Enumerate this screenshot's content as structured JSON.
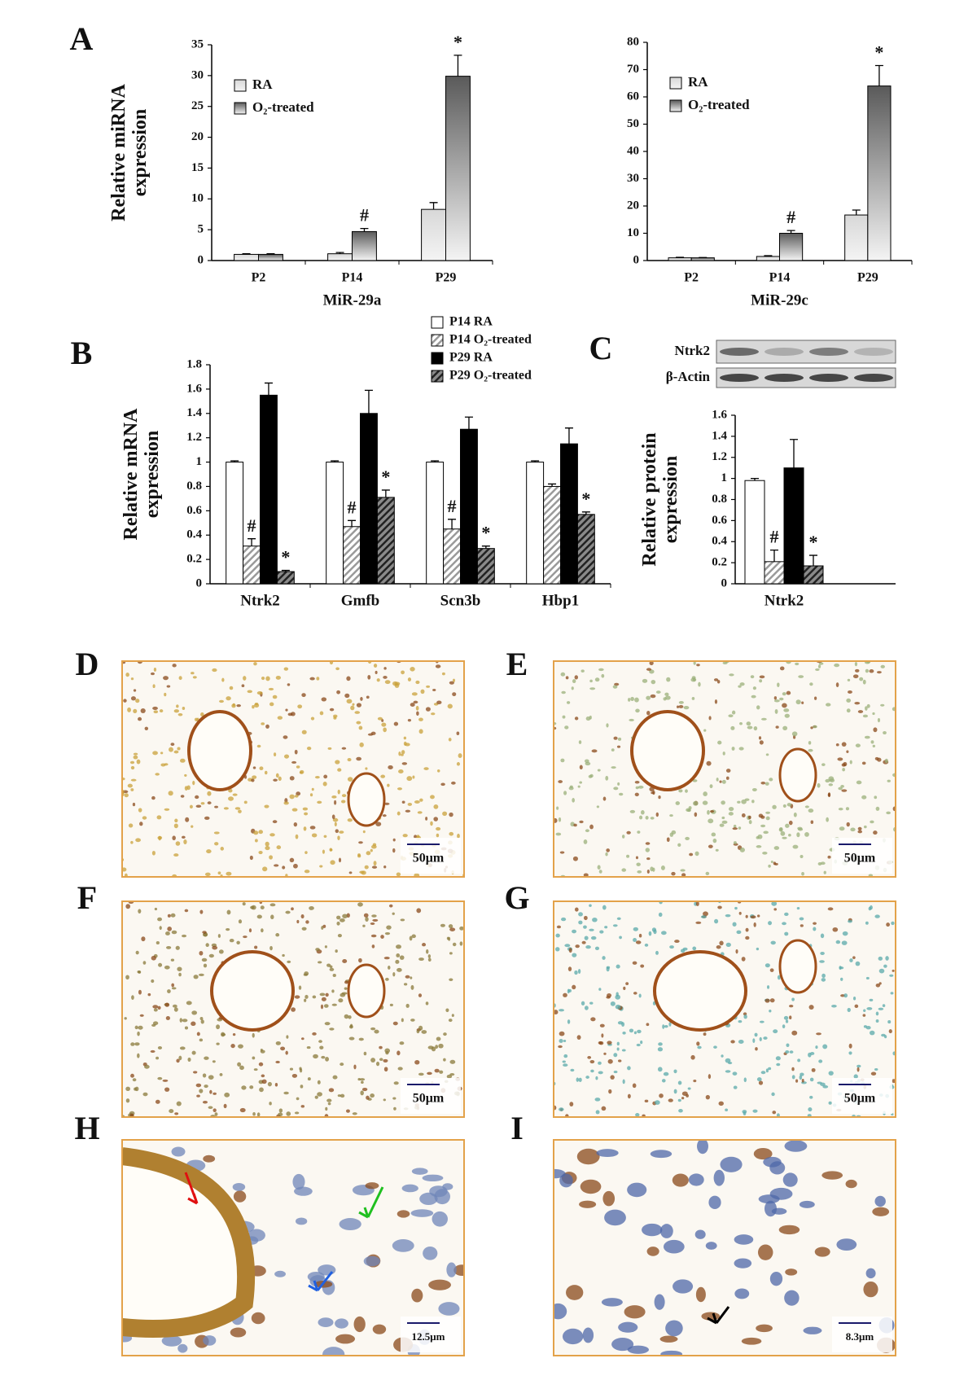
{
  "chart_data": [
    {
      "type": "bar",
      "panel": "A",
      "xlabel": "MiR-29a",
      "ylabel": "Relative miRNA expression",
      "categories": [
        "P2",
        "P14",
        "P29"
      ],
      "ylim": [
        0,
        35
      ],
      "yticks": [
        0,
        5,
        10,
        15,
        20,
        25,
        30,
        35
      ],
      "legend": "upper left",
      "series": [
        {
          "name": "RA",
          "color": "#d8d8d8",
          "style": "gradient",
          "values": [
            1,
            1.1,
            8.3
          ],
          "errors": [
            0.1,
            0.2,
            1.1
          ]
        },
        {
          "name": "O₂-treated",
          "color": "#5a5a5a",
          "style": "gradient",
          "values": [
            1,
            4.7,
            29.9
          ],
          "errors": [
            0.1,
            0.5,
            3.4
          ],
          "annotations": [
            null,
            "#",
            "*"
          ]
        }
      ]
    },
    {
      "type": "bar",
      "xlabel": "MiR-29c",
      "categories": [
        "P2",
        "P14",
        "P29"
      ],
      "ylim": [
        0,
        80
      ],
      "yticks": [
        0,
        10,
        20,
        30,
        40,
        50,
        60,
        70,
        80
      ],
      "legend": "upper left",
      "series": [
        {
          "name": "RA",
          "color": "#d8d8d8",
          "style": "gradient",
          "values": [
            1,
            1.5,
            16.7
          ],
          "errors": [
            0.2,
            0.3,
            1.8
          ]
        },
        {
          "name": "O₂-treated",
          "color": "#5a5a5a",
          "style": "gradient",
          "values": [
            1,
            10,
            64
          ],
          "errors": [
            0.1,
            1,
            7.5
          ],
          "annotations": [
            null,
            "#",
            "*"
          ]
        }
      ]
    },
    {
      "type": "bar",
      "panel": "B",
      "ylabel": "Relative mRNA expression",
      "categories": [
        "Ntrk2",
        "Gmfb",
        "Scn3b",
        "Hbp1"
      ],
      "ylim": [
        0,
        1.8
      ],
      "yticks": [
        0,
        0.2,
        0.4,
        0.6,
        0.8,
        1,
        1.2,
        1.4,
        1.6,
        1.8
      ],
      "legend": "upper right",
      "series": [
        {
          "name": "P14 RA",
          "color": "#ffffff",
          "style": "solid",
          "values": [
            1,
            1,
            1,
            1
          ],
          "errors": [
            0.01,
            0.01,
            0.01,
            0.01
          ]
        },
        {
          "name": "P14 O₂-treated",
          "color": "#9a9a9a",
          "style": "hatch",
          "values": [
            0.31,
            0.47,
            0.45,
            0.8
          ],
          "errors": [
            0.06,
            0.05,
            0.08,
            0.02
          ],
          "annotations": [
            "#",
            "#",
            "#",
            null
          ]
        },
        {
          "name": "P29 RA",
          "color": "#000000",
          "style": "solid",
          "values": [
            1.55,
            1.4,
            1.27,
            1.15
          ],
          "errors": [
            0.1,
            0.19,
            0.1,
            0.13
          ]
        },
        {
          "name": "P29 O₂-treated",
          "color": "#222222",
          "style": "hatch",
          "values": [
            0.1,
            0.71,
            0.29,
            0.57
          ],
          "errors": [
            0.01,
            0.06,
            0.02,
            0.02
          ],
          "annotations": [
            "*",
            "*",
            "*",
            "*"
          ]
        }
      ]
    },
    {
      "type": "bar",
      "panel": "C",
      "ylabel": "Relative protein expression",
      "categories": [
        "Ntrk2"
      ],
      "ylim": [
        0,
        1.6
      ],
      "yticks": [
        0,
        0.2,
        0.4,
        0.6,
        0.8,
        1,
        1.2,
        1.4,
        1.6
      ],
      "blot_labels": [
        "Ntrk2",
        "β-Actin"
      ],
      "series": [
        {
          "color": "#ffffff",
          "style": "solid",
          "values": [
            0.98
          ],
          "errors": [
            0.02
          ]
        },
        {
          "color": "#9a9a9a",
          "style": "hatch",
          "values": [
            0.21
          ],
          "errors": [
            0.11
          ],
          "annotations": [
            "#"
          ]
        },
        {
          "color": "#000000",
          "style": "solid",
          "values": [
            1.1
          ],
          "errors": [
            0.27
          ]
        },
        {
          "color": "#222222",
          "style": "hatch",
          "values": [
            0.17
          ],
          "errors": [
            0.1
          ],
          "annotations": [
            "*"
          ]
        }
      ]
    }
  ],
  "micrographs": [
    {
      "panel": "D",
      "scale_bar": "50μm",
      "tone": "#c9a23a"
    },
    {
      "panel": "E",
      "scale_bar": "50μm",
      "tone": "#9bb07a"
    },
    {
      "panel": "F",
      "scale_bar": "50μm",
      "tone": "#8a7a3a"
    },
    {
      "panel": "G",
      "scale_bar": "50μm",
      "tone": "#5aa9a9"
    },
    {
      "panel": "H",
      "scale_bar": "12.5μm",
      "tone": "#6f86b8"
    },
    {
      "panel": "I",
      "scale_bar": "8.3μm",
      "tone": "#4f68a8"
    }
  ]
}
